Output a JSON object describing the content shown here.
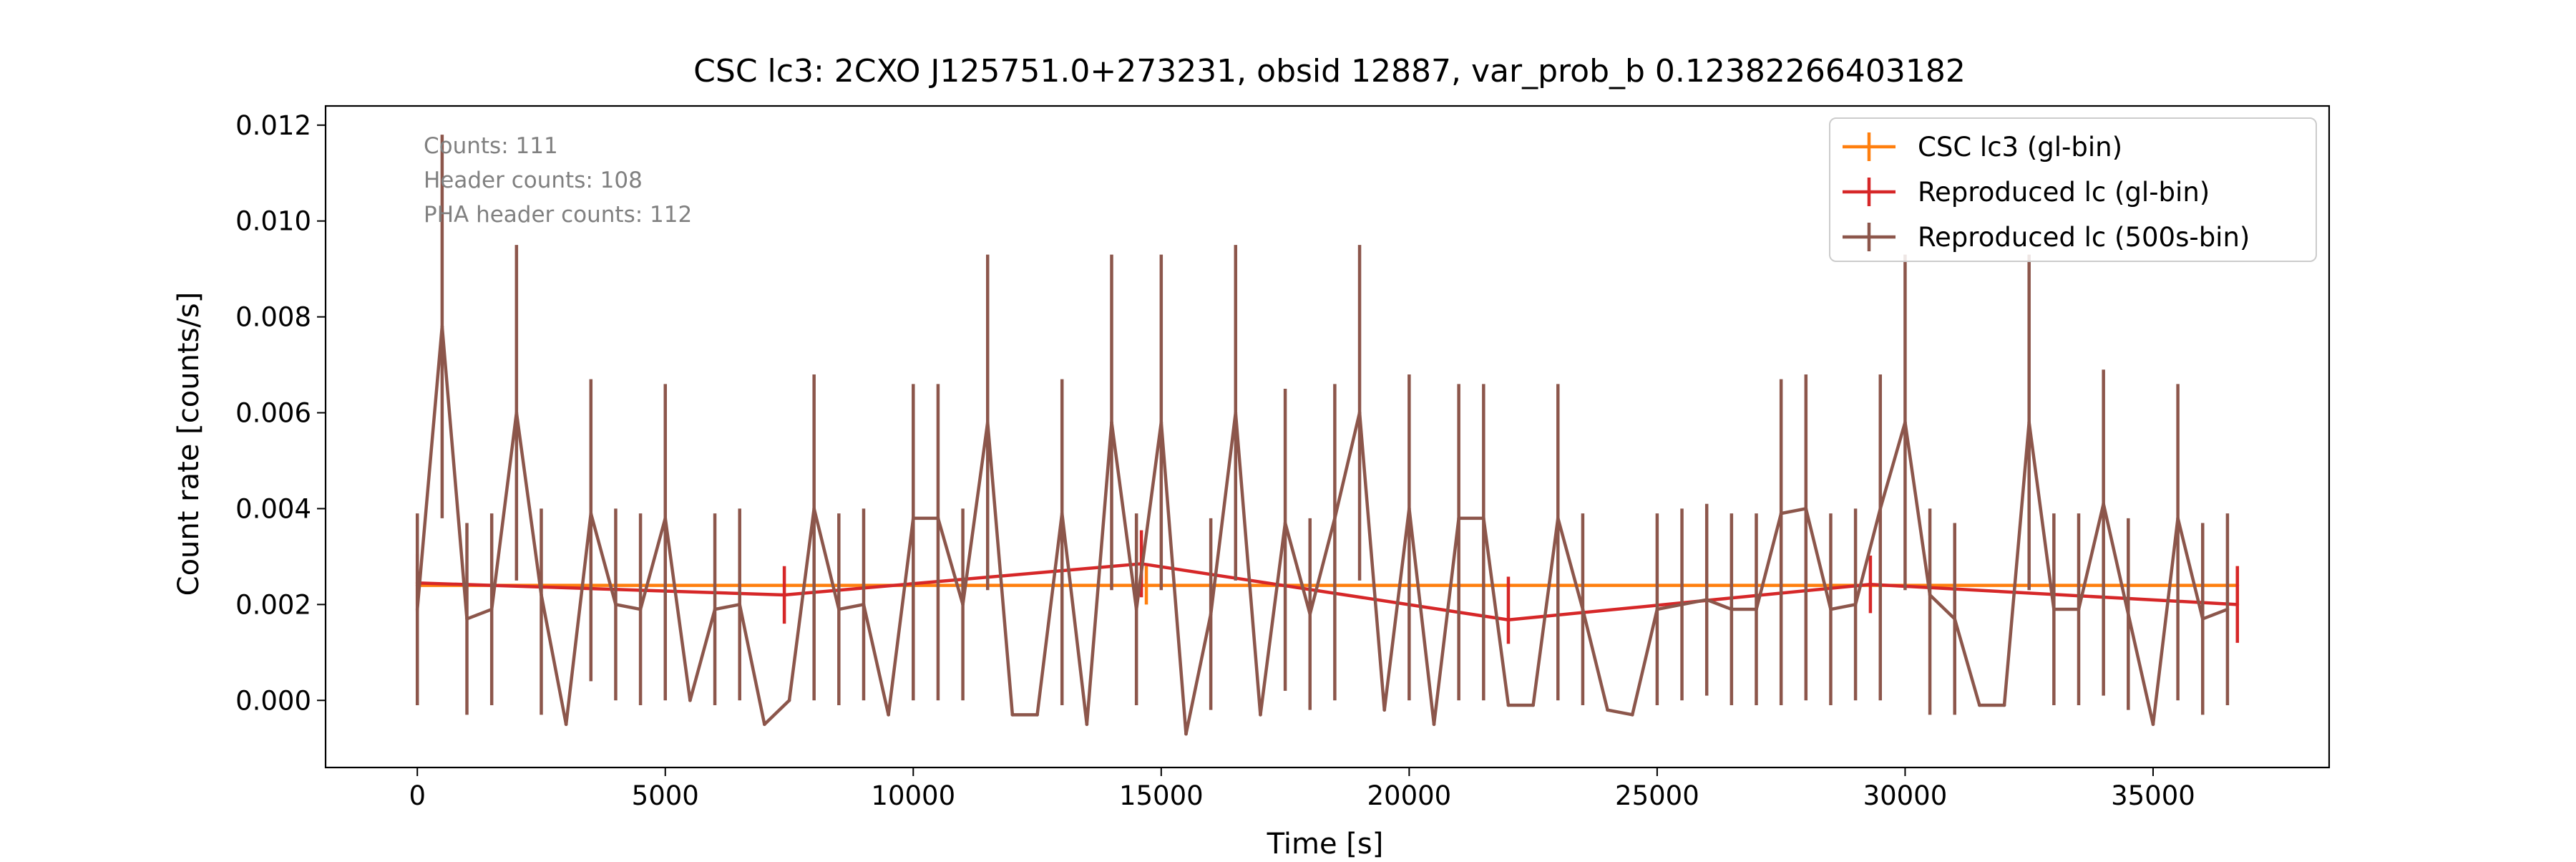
{
  "chart_data": {
    "type": "line",
    "title": "CSC lc3: 2CXO J125751.0+273231, obsid 12887, var_prob_b 0.12382266403182",
    "xlabel": "Time [s]",
    "ylabel": "Count rate [counts/s]",
    "xlim": [
      -1850,
      38550
    ],
    "ylim": [
      -0.0014,
      0.0124
    ],
    "xticks": [
      0,
      5000,
      10000,
      15000,
      20000,
      25000,
      30000,
      35000
    ],
    "xtick_labels": [
      "0",
      "5000",
      "10000",
      "15000",
      "20000",
      "25000",
      "30000",
      "35000"
    ],
    "yticks": [
      0.0,
      0.002,
      0.004,
      0.006,
      0.008,
      0.01,
      0.012
    ],
    "ytick_labels": [
      "0.000",
      "0.002",
      "0.004",
      "0.006",
      "0.008",
      "0.010",
      "0.012"
    ],
    "grid": false,
    "legend_placement": "upper right",
    "annotations": [
      "Counts: 111",
      "Header counts: 108",
      "PHA header counts: 112"
    ],
    "series": [
      {
        "name": "CSC lc3 (gl-bin)",
        "color": "#ff7f0e",
        "x": [
          0,
          14700,
          36700
        ],
        "y": [
          0.0024,
          0.0024,
          0.0024
        ],
        "yerr": [
          [
            0.0004,
            0.0004,
            0.0004
          ],
          [
            0.0004,
            0.0004,
            0.0004
          ]
        ]
      },
      {
        "name": "Reproduced lc (gl-bin)",
        "color": "#d62728",
        "x": [
          0,
          7400,
          14600,
          22000,
          29300,
          36700
        ],
        "y": [
          0.00245,
          0.0022,
          0.00285,
          0.00168,
          0.00242,
          0.002
        ],
        "yerr": [
          [
            0.0006,
            0.0006,
            0.0007,
            0.0005,
            0.0006,
            0.0008
          ],
          [
            0.0006,
            0.0006,
            0.0007,
            0.0009,
            0.0006,
            0.0008
          ]
        ]
      },
      {
        "name": "Reproduced lc (500s-bin)",
        "color": "#8c564b",
        "x": [
          0,
          500,
          1000,
          1500,
          2000,
          2500,
          3000,
          3500,
          4000,
          4500,
          5000,
          5500,
          6000,
          6500,
          7000,
          7500,
          8000,
          8500,
          9000,
          9500,
          10000,
          10500,
          11000,
          11500,
          12000,
          12500,
          13000,
          13500,
          14000,
          14500,
          15000,
          15500,
          16000,
          16500,
          17000,
          17500,
          18000,
          18500,
          19000,
          19500,
          20000,
          20500,
          21000,
          21500,
          22000,
          22500,
          23000,
          23500,
          24000,
          24500,
          25000,
          25500,
          26000,
          26500,
          27000,
          27500,
          28000,
          28500,
          29000,
          29500,
          30000,
          30500,
          31000,
          31500,
          32000,
          32500,
          33000,
          33500,
          34000,
          34500,
          35000,
          35500,
          36000,
          36500
        ],
        "y": [
          0.0019,
          0.0078,
          0.0017,
          0.0019,
          0.006,
          0.0022,
          -0.0005,
          0.0039,
          0.002,
          0.0019,
          0.0038,
          0.0,
          0.0019,
          0.002,
          -0.0005,
          0.0,
          0.004,
          0.0019,
          0.002,
          -0.0003,
          0.0038,
          0.0038,
          0.002,
          0.0058,
          -0.0003,
          -0.0003,
          0.0039,
          -0.0005,
          0.0058,
          0.0019,
          0.0058,
          -0.0007,
          0.0018,
          0.006,
          -0.0003,
          0.0037,
          0.0018,
          0.0038,
          0.006,
          -0.0002,
          0.004,
          -0.0005,
          0.0038,
          0.0038,
          -0.0001,
          -0.0001,
          0.0038,
          0.0019,
          -0.0002,
          -0.0003,
          0.0019,
          0.002,
          0.0021,
          0.0019,
          0.0019,
          0.0039,
          0.004,
          0.0019,
          0.002,
          0.004,
          0.0058,
          0.0022,
          0.0017,
          -0.0001,
          -0.0001,
          0.0058,
          0.0019,
          0.0019,
          0.0041,
          0.0018,
          -0.0005,
          0.0038,
          0.0017,
          0.0019
        ],
        "yerr_lower": [
          0.002,
          0.004,
          0.002,
          0.002,
          0.0035,
          0.0025,
          0.0,
          0.0035,
          0.002,
          0.002,
          0.0038,
          0.0,
          0.002,
          0.002,
          0.0,
          0.0,
          0.004,
          0.002,
          0.002,
          0.0,
          0.0038,
          0.0038,
          0.002,
          0.0035,
          0.0,
          0.0,
          0.004,
          0.0,
          0.0035,
          0.002,
          0.0035,
          0.0,
          0.002,
          0.0035,
          0.0,
          0.0035,
          0.002,
          0.0038,
          0.0035,
          0.0,
          0.004,
          0.0,
          0.0038,
          0.0038,
          0.0,
          0.0,
          0.0038,
          0.002,
          0.0,
          0.0,
          0.002,
          0.002,
          0.002,
          0.002,
          0.002,
          0.004,
          0.004,
          0.002,
          0.002,
          0.004,
          0.0035,
          0.0025,
          0.002,
          0.0,
          0.0,
          0.0035,
          0.002,
          0.002,
          0.004,
          0.002,
          0.0,
          0.0038,
          0.002,
          0.002
        ],
        "yerr_upper": [
          0.002,
          0.004,
          0.002,
          0.002,
          0.0035,
          0.0018,
          0.0,
          0.0028,
          0.002,
          0.002,
          0.0028,
          0.0,
          0.002,
          0.002,
          0.0,
          0.0,
          0.0028,
          0.002,
          0.002,
          0.0,
          0.0028,
          0.0028,
          0.002,
          0.0035,
          0.0,
          0.0,
          0.0028,
          0.0,
          0.0035,
          0.002,
          0.0035,
          0.0,
          0.002,
          0.0035,
          0.0,
          0.0028,
          0.002,
          0.0028,
          0.0035,
          0.0,
          0.0028,
          0.0,
          0.0028,
          0.0028,
          0.0,
          0.0,
          0.0028,
          0.002,
          0.0,
          0.0,
          0.002,
          0.002,
          0.002,
          0.002,
          0.002,
          0.0028,
          0.0028,
          0.002,
          0.002,
          0.0028,
          0.0035,
          0.0018,
          0.002,
          0.0,
          0.0,
          0.0035,
          0.002,
          0.002,
          0.0028,
          0.002,
          0.0,
          0.0028,
          0.002,
          0.002
        ]
      }
    ]
  }
}
